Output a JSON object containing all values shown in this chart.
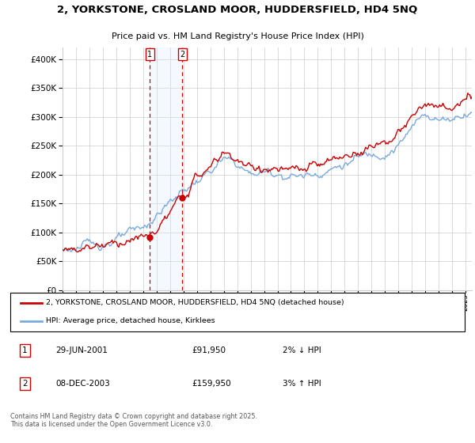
{
  "title_line1": "2, YORKSTONE, CROSLAND MOOR, HUDDERSFIELD, HD4 5NQ",
  "title_line2": "Price paid vs. HM Land Registry's House Price Index (HPI)",
  "sale1_date": "29-JUN-2001",
  "sale1_price": 91950,
  "sale1_pct": "2%",
  "sale1_dir": "↓",
  "sale2_date": "08-DEC-2003",
  "sale2_price": 159950,
  "sale2_pct": "3%",
  "sale2_dir": "↑",
  "legend_label1": "2, YORKSTONE, CROSLAND MOOR, HUDDERSFIELD, HD4 5NQ (detached house)",
  "legend_label2": "HPI: Average price, detached house, Kirklees",
  "footer": "Contains HM Land Registry data © Crown copyright and database right 2025.\nThis data is licensed under the Open Government Licence v3.0.",
  "line_color_red": "#cc0000",
  "line_color_blue": "#7aaadd",
  "background_color": "#ffffff",
  "grid_color": "#cccccc",
  "shade_color": "#ddeeff",
  "vline_color": "#cc0000",
  "ylim": [
    0,
    420000
  ],
  "yticks": [
    0,
    50000,
    100000,
    150000,
    200000,
    250000,
    300000,
    350000,
    400000
  ],
  "sale1_x": 2001.496,
  "sale2_x": 2003.918
}
